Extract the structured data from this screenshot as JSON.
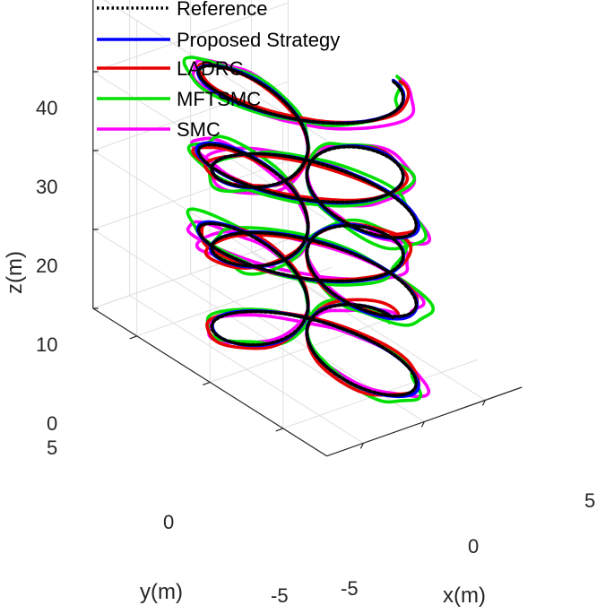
{
  "chart_data": {
    "type": "line3d",
    "title": "",
    "xlabel": "x(m)",
    "ylabel": "y(m)",
    "zlabel": "z(m)",
    "xlim": [
      -8,
      8
    ],
    "ylim": [
      -8,
      8
    ],
    "zlim": [
      0,
      40
    ],
    "xticks": [
      "-5",
      "0",
      "5"
    ],
    "yticks": [
      "-5",
      "0",
      "5"
    ],
    "zticks": [
      "0",
      "10",
      "20",
      "30",
      "40"
    ],
    "grid": true,
    "legend_position": "top-left",
    "series": [
      {
        "name": "Reference",
        "color": "#000000",
        "style": "dotted"
      },
      {
        "name": "Proposed Strategy",
        "color": "#0000ff",
        "style": "solid"
      },
      {
        "name": "LADRC",
        "color": "#e80000",
        "style": "solid"
      },
      {
        "name": "MFTSMC",
        "color": "#00e000",
        "style": "solid"
      },
      {
        "name": "SMC",
        "color": "#ff00ff",
        "style": "solid"
      }
    ],
    "trajectory": {
      "shape": "four-leaf clover (r = 7 cos 2t) rising linearly",
      "z_start": 0,
      "z_end": 30,
      "turns": 3
    }
  }
}
